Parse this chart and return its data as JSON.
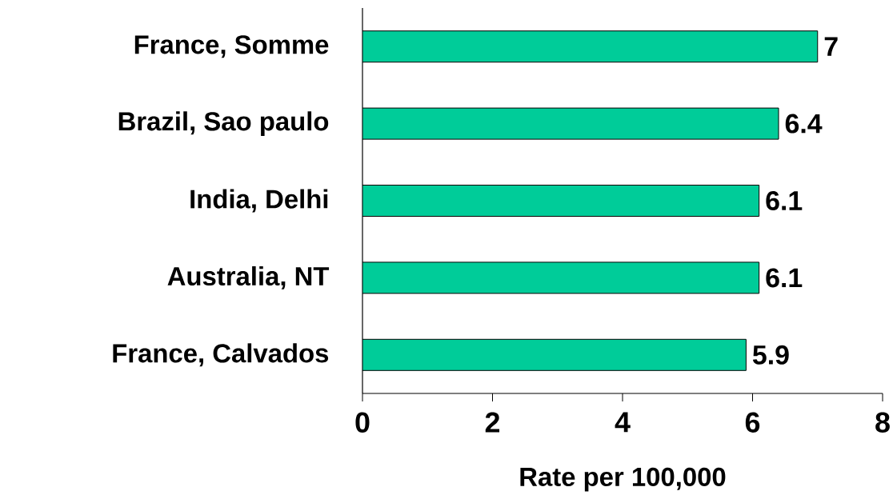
{
  "chart_data": {
    "type": "bar",
    "orientation": "horizontal",
    "xlabel": "Rate per 100,000",
    "categories": [
      "France, Somme",
      "Brazil, Sao paulo",
      "India, Delhi",
      "Australia, NT",
      "France, Calvados"
    ],
    "values": [
      7,
      6.4,
      6.1,
      6.1,
      5.9
    ],
    "color": "#00cc99",
    "data_labels": true,
    "xlim": [
      0,
      8
    ],
    "xticks": [
      0,
      2,
      4,
      6,
      8
    ]
  }
}
